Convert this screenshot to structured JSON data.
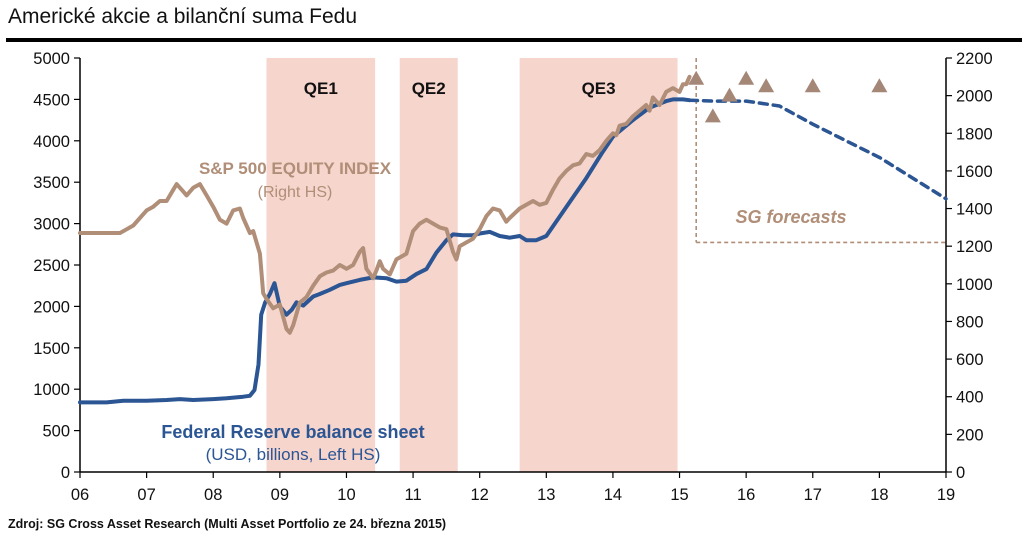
{
  "header": {
    "title": "Americké akcie a bilanční suma Fedu"
  },
  "footer": {
    "source": "Zdroj: SG Cross Asset Research (Multi Asset Portfolio ze 24. března 2015)"
  },
  "colors": {
    "fed": "#2b5593",
    "spx": "#b08e78",
    "qe_band": "#f6d5cd",
    "forecast_marker": "#a58778",
    "forecast_box": "#b08e78"
  },
  "chart_data": {
    "type": "line",
    "x_axis": {
      "ticks": [
        "06",
        "07",
        "08",
        "09",
        "10",
        "11",
        "12",
        "13",
        "14",
        "15",
        "16",
        "17",
        "18",
        "19"
      ],
      "range": [
        2006,
        2019
      ]
    },
    "y_left": {
      "range": [
        0,
        5000
      ],
      "ticks": [
        "0",
        "500",
        "1000",
        "1500",
        "2000",
        "2500",
        "3000",
        "3500",
        "4000",
        "4500",
        "5000"
      ]
    },
    "y_right": {
      "range": [
        0,
        2200
      ],
      "ticks": [
        "0",
        "200",
        "400",
        "600",
        "800",
        "1000",
        "1200",
        "1400",
        "1600",
        "1800",
        "2000",
        "2200"
      ]
    },
    "qe_periods": [
      {
        "label": "QE1",
        "start": 2008.8,
        "end": 2010.43
      },
      {
        "label": "QE2",
        "start": 2010.8,
        "end": 2011.67
      },
      {
        "label": "QE3",
        "start": 2012.6,
        "end": 2014.97
      }
    ],
    "annotations": {
      "spx_label": "S&P 500 EQUITY INDEX",
      "spx_sublabel": "(Right HS)",
      "fed_label": "Federal Reserve balance sheet",
      "fed_sublabel": "(USD, billions, Left HS)",
      "forecast_label": "SG forecasts"
    },
    "series": [
      {
        "name": "Federal Reserve balance sheet",
        "axis": "left",
        "x": [
          2006.0,
          2006.4,
          2006.65,
          2007.0,
          2007.3,
          2007.5,
          2007.7,
          2008.0,
          2008.2,
          2008.45,
          2008.55,
          2008.62,
          2008.68,
          2008.72,
          2008.78,
          2008.85,
          2008.92,
          2009.0,
          2009.05,
          2009.1,
          2009.18,
          2009.25,
          2009.35,
          2009.5,
          2009.6,
          2009.75,
          2009.9,
          2010.0,
          2010.2,
          2010.4,
          2010.6,
          2010.75,
          2010.9,
          2011.05,
          2011.2,
          2011.35,
          2011.5,
          2011.6,
          2011.75,
          2011.9,
          2012.0,
          2012.15,
          2012.3,
          2012.45,
          2012.6,
          2012.7,
          2012.85,
          2013.0,
          2013.3,
          2013.6,
          2013.85,
          2014.0,
          2014.3,
          2014.55,
          2014.8,
          2014.9,
          2015.05,
          2015.15
        ],
        "values": [
          840,
          840,
          860,
          860,
          870,
          880,
          870,
          880,
          890,
          910,
          920,
          990,
          1300,
          1900,
          2050,
          2150,
          2280,
          2000,
          1950,
          1900,
          1960,
          2050,
          2010,
          2120,
          2150,
          2200,
          2260,
          2280,
          2320,
          2350,
          2340,
          2300,
          2310,
          2390,
          2450,
          2650,
          2800,
          2870,
          2860,
          2860,
          2880,
          2900,
          2850,
          2830,
          2850,
          2800,
          2800,
          2850,
          3200,
          3550,
          3870,
          4050,
          4250,
          4400,
          4480,
          4500,
          4500,
          4490
        ]
      },
      {
        "name": "Federal Reserve balance sheet (SG forecast)",
        "axis": "left",
        "x": [
          2015.15,
          2015.5,
          2016.0,
          2016.5,
          2017.0,
          2017.5,
          2018.0,
          2018.5,
          2019.0
        ],
        "values": [
          4490,
          4480,
          4480,
          4420,
          4200,
          4000,
          3800,
          3550,
          3300
        ]
      },
      {
        "name": "S&P 500 EQUITY INDEX",
        "axis": "right",
        "x": [
          2006.0,
          2006.3,
          2006.6,
          2006.8,
          2007.0,
          2007.1,
          2007.2,
          2007.3,
          2007.4,
          2007.45,
          2007.55,
          2007.6,
          2007.7,
          2007.8,
          2007.9,
          2008.0,
          2008.1,
          2008.2,
          2008.3,
          2008.4,
          2008.45,
          2008.55,
          2008.6,
          2008.7,
          2008.75,
          2008.8,
          2008.9,
          2009.0,
          2009.1,
          2009.15,
          2009.2,
          2009.3,
          2009.4,
          2009.5,
          2009.6,
          2009.7,
          2009.8,
          2009.9,
          2010.0,
          2010.1,
          2010.2,
          2010.25,
          2010.3,
          2010.4,
          2010.45,
          2010.5,
          2010.55,
          2010.65,
          2010.75,
          2010.9,
          2011.0,
          2011.1,
          2011.2,
          2011.3,
          2011.4,
          2011.5,
          2011.6,
          2011.65,
          2011.7,
          2011.8,
          2011.9,
          2012.0,
          2012.1,
          2012.2,
          2012.3,
          2012.4,
          2012.45,
          2012.6,
          2012.7,
          2012.8,
          2012.9,
          2013.0,
          2013.1,
          2013.2,
          2013.3,
          2013.4,
          2013.5,
          2013.6,
          2013.7,
          2013.8,
          2013.9,
          2014.0,
          2014.05,
          2014.1,
          2014.2,
          2014.3,
          2014.4,
          2014.5,
          2014.55,
          2014.6,
          2014.7,
          2014.8,
          2014.9,
          2015.0,
          2015.05,
          2015.1,
          2015.15
        ],
        "values": [
          1270,
          1270,
          1270,
          1310,
          1390,
          1410,
          1440,
          1440,
          1500,
          1530,
          1490,
          1470,
          1510,
          1530,
          1470,
          1410,
          1340,
          1320,
          1390,
          1400,
          1350,
          1270,
          1280,
          1160,
          950,
          920,
          870,
          890,
          760,
          740,
          780,
          900,
          930,
          990,
          1040,
          1060,
          1070,
          1100,
          1080,
          1100,
          1170,
          1190,
          1080,
          1030,
          1070,
          1120,
          1080,
          1050,
          1130,
          1160,
          1280,
          1320,
          1340,
          1320,
          1300,
          1290,
          1170,
          1130,
          1200,
          1220,
          1240,
          1290,
          1360,
          1400,
          1390,
          1330,
          1350,
          1400,
          1420,
          1440,
          1420,
          1430,
          1500,
          1560,
          1600,
          1630,
          1640,
          1690,
          1680,
          1710,
          1760,
          1800,
          1790,
          1840,
          1850,
          1890,
          1920,
          1950,
          1920,
          1990,
          1950,
          2020,
          2040,
          2020,
          2060,
          2060,
          2100
        ]
      }
    ],
    "forecast_points": {
      "axis": "right",
      "x": [
        2015.25,
        2015.5,
        2015.75,
        2016.0,
        2016.3,
        2017.0,
        2018.0
      ],
      "values": [
        2090,
        1890,
        2000,
        2090,
        2050,
        2050,
        2050
      ]
    }
  }
}
